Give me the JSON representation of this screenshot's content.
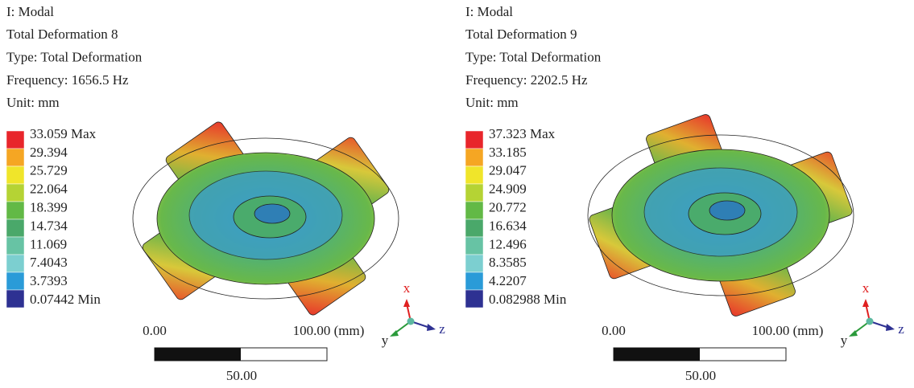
{
  "legend_colors": [
    "#e8262b",
    "#f5a623",
    "#f0e52a",
    "#b5d334",
    "#62b946",
    "#4aa86a",
    "#67c3a4",
    "#7ccfd0",
    "#2a9bd8",
    "#2e3192"
  ],
  "panels": [
    {
      "header": [
        "I: Modal",
        "Total Deformation 8",
        "Type: Total Deformation",
        "Frequency: 1656.5 Hz",
        "Unit: mm"
      ],
      "legend": [
        "33.059 Max",
        "29.394",
        "25.729",
        "22.064",
        "18.399",
        "14.734",
        "11.069",
        "7.4043",
        "3.7393",
        "0.07442 Min"
      ],
      "scale": {
        "start": "0.00",
        "end": "100.00 (mm)",
        "mid": "50.00"
      },
      "triad": {
        "x": "x",
        "y": "y",
        "z": "z"
      }
    },
    {
      "header": [
        "I: Modal",
        "Total Deformation 9",
        "Type: Total Deformation",
        "Frequency: 2202.5 Hz",
        "Unit: mm"
      ],
      "legend": [
        "37.323 Max",
        "33.185",
        "29.047",
        "24.909",
        "20.772",
        "16.634",
        "12.496",
        "8.3585",
        "4.2207",
        "0.082988 Min"
      ],
      "scale": {
        "start": "0.00",
        "end": "100.00 (mm)",
        "mid": "50.00"
      },
      "triad": {
        "x": "x",
        "y": "y",
        "z": "z"
      }
    }
  ]
}
